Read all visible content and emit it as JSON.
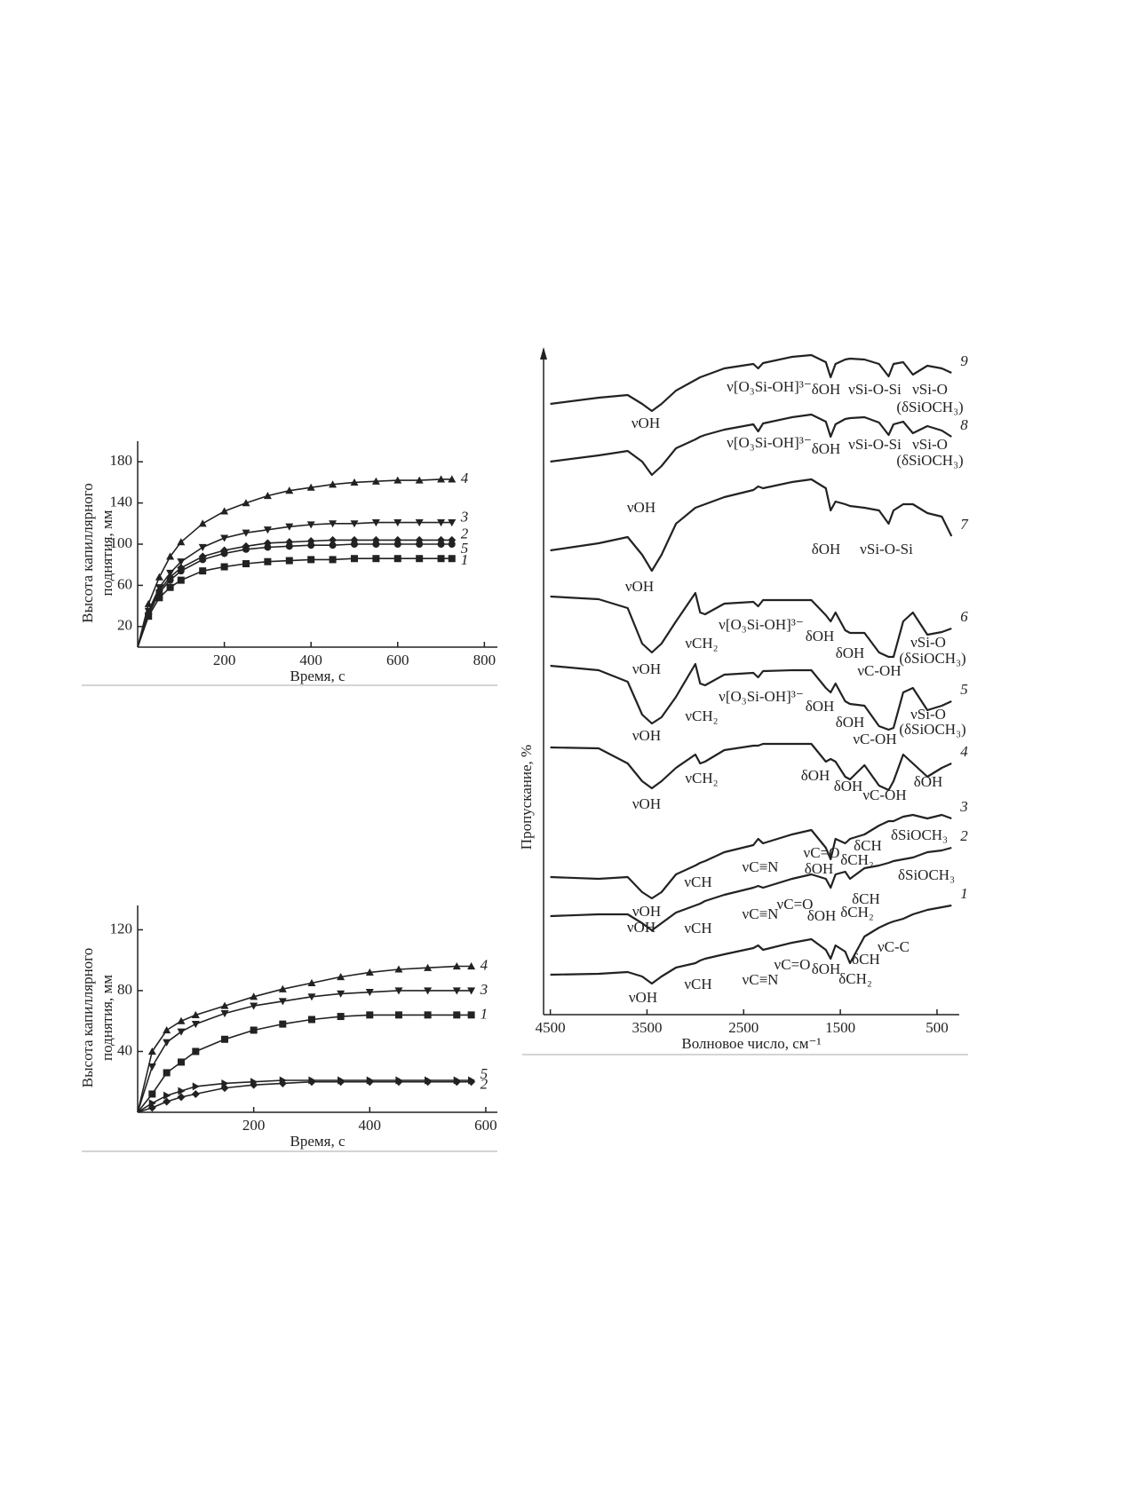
{
  "chart_data": [
    {
      "type": "line",
      "x_label": "Время, с",
      "y_label": [
        "Высота капиллярного",
        "поднятия, мм"
      ],
      "xlim": [
        0,
        830
      ],
      "ylim": [
        0,
        200
      ],
      "xticks": [
        200,
        400,
        600,
        800
      ],
      "yticks": [
        20,
        60,
        100,
        140,
        180
      ],
      "x": [
        0,
        25,
        50,
        75,
        100,
        150,
        200,
        250,
        300,
        350,
        400,
        450,
        500,
        550,
        600,
        650,
        700,
        725
      ],
      "series": [
        {
          "name": "4",
          "color": "#222",
          "marker": "triangle-up",
          "values": [
            0,
            42,
            68,
            88,
            102,
            120,
            132,
            140,
            147,
            152,
            155,
            158,
            160,
            161,
            162,
            162,
            163,
            163
          ]
        },
        {
          "name": "3",
          "color": "#222",
          "marker": "triangle-down",
          "values": [
            0,
            35,
            58,
            72,
            83,
            97,
            106,
            111,
            114,
            117,
            119,
            120,
            120,
            121,
            121,
            121,
            121,
            121
          ]
        },
        {
          "name": "2",
          "color": "#222",
          "marker": "diamond",
          "values": [
            0,
            33,
            55,
            68,
            77,
            88,
            94,
            98,
            101,
            102,
            103,
            104,
            104,
            104,
            104,
            104,
            104,
            104
          ]
        },
        {
          "name": "5",
          "color": "#222",
          "marker": "circle",
          "values": [
            0,
            32,
            53,
            65,
            74,
            85,
            91,
            95,
            97,
            98,
            99,
            99,
            100,
            100,
            100,
            100,
            100,
            100
          ]
        },
        {
          "name": "1",
          "color": "#222",
          "marker": "square",
          "values": [
            0,
            30,
            48,
            58,
            65,
            74,
            78,
            81,
            83,
            84,
            85,
            85,
            86,
            86,
            86,
            86,
            86,
            86
          ]
        }
      ]
    },
    {
      "type": "line",
      "x_label": "Время, с",
      "y_label": [
        "Высота капиллярного",
        "поднятия, мм"
      ],
      "xlim": [
        0,
        620
      ],
      "ylim": [
        0,
        136
      ],
      "xticks": [
        200,
        400,
        600
      ],
      "yticks": [
        40,
        80,
        120
      ],
      "x": [
        0,
        25,
        50,
        75,
        100,
        150,
        200,
        250,
        300,
        350,
        400,
        450,
        500,
        550,
        575
      ],
      "series": [
        {
          "name": "4",
          "color": "#222",
          "marker": "triangle-up",
          "values": [
            0,
            40,
            54,
            60,
            64,
            70,
            76,
            81,
            85,
            89,
            92,
            94,
            95,
            96,
            96
          ]
        },
        {
          "name": "3",
          "color": "#222",
          "marker": "triangle-down",
          "values": [
            0,
            30,
            46,
            53,
            58,
            65,
            70,
            73,
            76,
            78,
            79,
            80,
            80,
            80,
            80
          ]
        },
        {
          "name": "1",
          "color": "#222",
          "marker": "square",
          "values": [
            0,
            12,
            26,
            33,
            40,
            48,
            54,
            58,
            61,
            63,
            64,
            64,
            64,
            64,
            64
          ]
        },
        {
          "name": "5",
          "color": "#222",
          "marker": "triangle-right",
          "values": [
            0,
            6,
            11,
            14,
            17,
            19,
            20,
            21,
            21,
            21,
            21,
            21,
            21,
            21,
            21
          ]
        },
        {
          "name": "2",
          "color": "#222",
          "marker": "diamond",
          "values": [
            0,
            3,
            7,
            10,
            12,
            16,
            18,
            19,
            20,
            20,
            20,
            20,
            20,
            20,
            20
          ]
        }
      ]
    },
    {
      "type": "spectrum",
      "x_label": "Волновое число, см⁻¹",
      "y_label": "Пропускание, %",
      "xlim": [
        4570,
        270
      ],
      "ylim": [
        0,
        750
      ],
      "xticks": [
        4500,
        3500,
        2500,
        1500,
        500
      ],
      "x": [
        4500,
        4000,
        3700,
        3550,
        3450,
        3350,
        3200,
        3000,
        2950,
        2900,
        2700,
        2400,
        2350,
        2300,
        2000,
        1800,
        1650,
        1600,
        1550,
        1450,
        1400,
        1250,
        1100,
        1000,
        950,
        850,
        750,
        600,
        450,
        350
      ],
      "series": [
        {
          "name": "9",
          "color": "#222",
          "values": [
            688,
            695,
            698,
            688,
            680,
            688,
            703,
            715,
            718,
            720,
            728,
            733,
            728,
            734,
            741,
            743,
            735,
            718,
            733,
            738,
            739,
            738,
            733,
            719,
            733,
            735,
            721,
            731,
            728,
            723
          ],
          "annotations": [
            "νOH",
            "ν[O₃Si-OH]³⁻",
            "δOH",
            "νSi-O-Si",
            "νSi-O",
            "(δSiOCH₃)"
          ]
        },
        {
          "name": "8",
          "color": "#222",
          "values": [
            623,
            630,
            635,
            623,
            608,
            618,
            638,
            648,
            651,
            653,
            659,
            665,
            657,
            666,
            673,
            676,
            668,
            651,
            665,
            671,
            672,
            673,
            667,
            653,
            665,
            668,
            655,
            663,
            658,
            651
          ],
          "annotations": [
            "νOH",
            "ν[O₃Si-OH]³⁻",
            "δOH",
            "νSi-O-Si",
            "νSi-O",
            "(δSiOCH₃)"
          ]
        },
        {
          "name": "7",
          "color": "#222",
          "values": [
            523,
            531,
            538,
            518,
            500,
            518,
            553,
            571,
            573,
            575,
            583,
            591,
            595,
            593,
            600,
            603,
            593,
            568,
            578,
            575,
            573,
            571,
            568,
            553,
            568,
            575,
            575,
            565,
            561,
            539
          ],
          "annotations": [
            "νOH",
            "δOH",
            "νSi-O-Si"
          ]
        },
        {
          "name": "6",
          "color": "#222",
          "values": [
            471,
            468,
            458,
            418,
            408,
            418,
            443,
            475,
            453,
            451,
            463,
            465,
            460,
            467,
            467,
            467,
            450,
            443,
            453,
            433,
            430,
            430,
            408,
            403,
            403,
            443,
            453,
            428,
            431,
            435
          ],
          "annotations": [
            "νOH",
            "νCH₂",
            "ν[O₃Si-OH]³⁻",
            "δOH",
            "δOH",
            "νC-OH",
            "νSi-O",
            "(δSiOCH₃)"
          ]
        },
        {
          "name": "5",
          "color": "#222",
          "values": [
            393,
            388,
            375,
            338,
            328,
            335,
            358,
            395,
            373,
            371,
            383,
            385,
            380,
            387,
            388,
            388,
            368,
            363,
            373,
            353,
            350,
            348,
            325,
            321,
            323,
            363,
            368,
            343,
            348,
            353
          ],
          "annotations": [
            "νOH",
            "νCH₂",
            "ν[O₃Si-OH]³⁻",
            "δOH",
            "δOH",
            "νC-OH",
            "νSi-O",
            "(δSiOCH₃)"
          ]
        },
        {
          "name": "4",
          "color": "#222",
          "values": [
            301,
            300,
            283,
            263,
            255,
            263,
            278,
            293,
            283,
            285,
            298,
            303,
            303,
            305,
            305,
            305,
            285,
            288,
            285,
            268,
            265,
            281,
            258,
            253,
            263,
            293,
            283,
            268,
            278,
            283
          ],
          "annotations": [
            "νOH",
            "νCH₂",
            "δOH",
            "δOH",
            "νC-OH",
            "δOH"
          ]
        },
        {
          "name": "3",
          "color": "#222",
          "values": [
            155,
            153,
            155,
            138,
            131,
            138,
            158,
            168,
            171,
            173,
            183,
            191,
            198,
            193,
            203,
            208,
            188,
            175,
            198,
            193,
            198,
            203,
            213,
            218,
            218,
            223,
            225,
            221,
            225,
            221
          ],
          "annotations": [
            "νOH",
            "νCH",
            "νC≡N",
            "νC=O",
            "δOH",
            "δCH₂",
            "δCH",
            "δSiOCH₃"
          ]
        },
        {
          "name": "2",
          "color": "#222",
          "values": [
            111,
            113,
            113,
            103,
            95,
            103,
            115,
            123,
            125,
            128,
            135,
            143,
            145,
            143,
            153,
            158,
            153,
            143,
            158,
            161,
            153,
            165,
            168,
            171,
            173,
            175,
            177,
            183,
            185,
            188
          ],
          "annotations": [
            "νOH",
            "νCH",
            "νC≡N",
            "νC=O",
            "δOH",
            "δCH₂",
            "δCH",
            "δSiOCH₃"
          ]
        },
        {
          "name": "1",
          "color": "#222",
          "values": [
            45,
            46,
            48,
            43,
            35,
            43,
            53,
            58,
            61,
            63,
            68,
            75,
            78,
            73,
            81,
            85,
            73,
            63,
            78,
            71,
            58,
            88,
            98,
            103,
            105,
            108,
            113,
            118,
            121,
            123
          ],
          "annotations": [
            "νOH",
            "νCH",
            "νC≡N",
            "νC=O",
            "δOH",
            "δCH₂",
            "δCH",
            "νC-C"
          ]
        }
      ]
    }
  ]
}
